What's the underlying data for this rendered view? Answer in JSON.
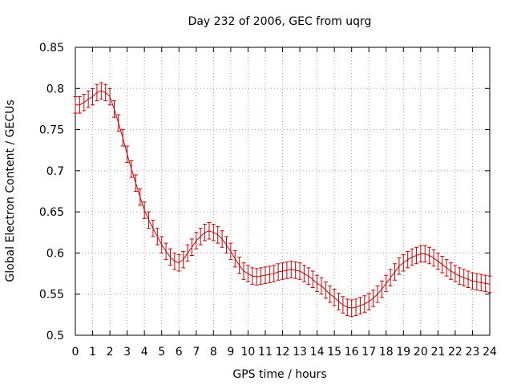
{
  "chart_data": {
    "type": "line",
    "title": "Day 232 of 2006, GEC from uqrg",
    "xlabel": "GPS time / hours",
    "ylabel": "Global Electron Content / GECUs",
    "xlim": [
      0,
      24
    ],
    "ylim": [
      0.5,
      0.85
    ],
    "xticks": [
      0,
      1,
      2,
      3,
      4,
      5,
      6,
      7,
      8,
      9,
      10,
      11,
      12,
      13,
      14,
      15,
      16,
      17,
      18,
      19,
      20,
      21,
      22,
      23,
      24
    ],
    "xtick_labels": [
      "0",
      "1",
      "2",
      "3",
      "4",
      "5",
      "6",
      "7",
      "8",
      "9",
      "10",
      "11",
      "12",
      "13",
      "14",
      "15",
      "16",
      "17",
      "18",
      "19",
      "20",
      "21",
      "22",
      "23",
      "24"
    ],
    "yticks": [
      0.5,
      0.55,
      0.6,
      0.65,
      0.7,
      0.75,
      0.8,
      0.85
    ],
    "ytick_labels": [
      "0.5",
      "0.55",
      "0.6",
      "0.65",
      "0.7",
      "0.75",
      "0.8",
      "0.85"
    ],
    "grid": true,
    "series": [
      {
        "color": "#cc0000",
        "error": 0.01,
        "points": [
          [
            0,
            0.78
          ],
          [
            0.25,
            0.78
          ],
          [
            0.5,
            0.783
          ],
          [
            0.75,
            0.787
          ],
          [
            1,
            0.79
          ],
          [
            1.25,
            0.795
          ],
          [
            1.5,
            0.797
          ],
          [
            1.75,
            0.795
          ],
          [
            2,
            0.79
          ],
          [
            2.25,
            0.775
          ],
          [
            2.5,
            0.758
          ],
          [
            2.75,
            0.74
          ],
          [
            3,
            0.72
          ],
          [
            3.25,
            0.702
          ],
          [
            3.5,
            0.685
          ],
          [
            3.75,
            0.668
          ],
          [
            4,
            0.652
          ],
          [
            4.25,
            0.64
          ],
          [
            4.5,
            0.63
          ],
          [
            4.75,
            0.62
          ],
          [
            5,
            0.61
          ],
          [
            5.25,
            0.602
          ],
          [
            5.5,
            0.595
          ],
          [
            5.75,
            0.59
          ],
          [
            6,
            0.588
          ],
          [
            6.25,
            0.592
          ],
          [
            6.5,
            0.6
          ],
          [
            6.75,
            0.607
          ],
          [
            7,
            0.615
          ],
          [
            7.25,
            0.62
          ],
          [
            7.5,
            0.625
          ],
          [
            7.75,
            0.627
          ],
          [
            8,
            0.625
          ],
          [
            8.25,
            0.622
          ],
          [
            8.5,
            0.617
          ],
          [
            8.75,
            0.61
          ],
          [
            9,
            0.602
          ],
          [
            9.25,
            0.593
          ],
          [
            9.5,
            0.585
          ],
          [
            9.75,
            0.578
          ],
          [
            10,
            0.575
          ],
          [
            10.25,
            0.572
          ],
          [
            10.5,
            0.571
          ],
          [
            10.75,
            0.572
          ],
          [
            11,
            0.573
          ],
          [
            11.25,
            0.574
          ],
          [
            11.5,
            0.575
          ],
          [
            11.75,
            0.577
          ],
          [
            12,
            0.578
          ],
          [
            12.25,
            0.579
          ],
          [
            12.5,
            0.58
          ],
          [
            12.75,
            0.579
          ],
          [
            13,
            0.578
          ],
          [
            13.25,
            0.575
          ],
          [
            13.5,
            0.572
          ],
          [
            13.75,
            0.568
          ],
          [
            14,
            0.563
          ],
          [
            14.25,
            0.56
          ],
          [
            14.5,
            0.555
          ],
          [
            14.75,
            0.55
          ],
          [
            15,
            0.546
          ],
          [
            15.25,
            0.541
          ],
          [
            15.5,
            0.537
          ],
          [
            15.75,
            0.534
          ],
          [
            16,
            0.533
          ],
          [
            16.25,
            0.534
          ],
          [
            16.5,
            0.536
          ],
          [
            16.75,
            0.538
          ],
          [
            17,
            0.541
          ],
          [
            17.25,
            0.545
          ],
          [
            17.5,
            0.55
          ],
          [
            17.75,
            0.556
          ],
          [
            18,
            0.563
          ],
          [
            18.25,
            0.57
          ],
          [
            18.5,
            0.577
          ],
          [
            18.75,
            0.584
          ],
          [
            19,
            0.588
          ],
          [
            19.25,
            0.592
          ],
          [
            19.5,
            0.595
          ],
          [
            19.75,
            0.597
          ],
          [
            20,
            0.599
          ],
          [
            20.25,
            0.599
          ],
          [
            20.5,
            0.597
          ],
          [
            20.75,
            0.594
          ],
          [
            21,
            0.59
          ],
          [
            21.25,
            0.586
          ],
          [
            21.5,
            0.582
          ],
          [
            21.75,
            0.578
          ],
          [
            22,
            0.575
          ],
          [
            22.25,
            0.572
          ],
          [
            22.5,
            0.57
          ],
          [
            22.75,
            0.568
          ],
          [
            23,
            0.566
          ],
          [
            23.25,
            0.565
          ],
          [
            23.5,
            0.564
          ],
          [
            23.75,
            0.563
          ],
          [
            24,
            0.562
          ]
        ]
      }
    ]
  }
}
